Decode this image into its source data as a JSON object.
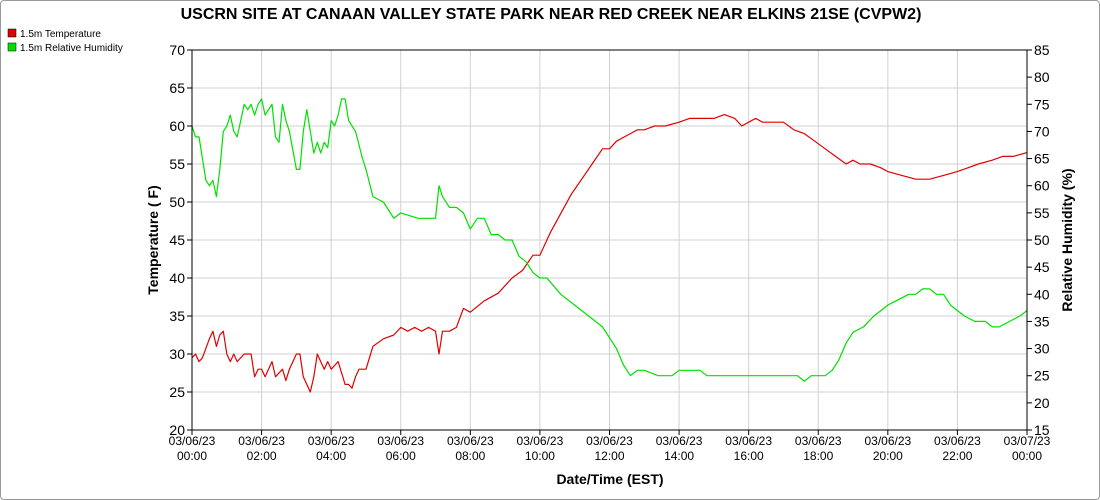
{
  "chart_data": {
    "type": "line",
    "title": "USCRN SITE AT CANAAN VALLEY STATE PARK NEAR RED CREEK NEAR ELKINS 21SE (CVPW2)",
    "xlabel": "Date/Time (EST)",
    "ylabel_left": "Temperature ( F)",
    "ylabel_right": "Relative Humidity (%)",
    "y_left_lim": [
      20,
      70
    ],
    "y_right_lim": [
      15,
      85
    ],
    "y_left_ticks": [
      "20",
      "25",
      "30",
      "35",
      "40",
      "45",
      "50",
      "55",
      "60",
      "65",
      "70"
    ],
    "y_right_ticks": [
      "15",
      "20",
      "25",
      "30",
      "35",
      "40",
      "45",
      "50",
      "55",
      "60",
      "65",
      "70",
      "75",
      "80",
      "85"
    ],
    "x_ticks": [
      {
        "date": "03/06/23",
        "time": "00:00"
      },
      {
        "date": "03/06/23",
        "time": "02:00"
      },
      {
        "date": "03/06/23",
        "time": "04:00"
      },
      {
        "date": "03/06/23",
        "time": "06:00"
      },
      {
        "date": "03/06/23",
        "time": "08:00"
      },
      {
        "date": "03/06/23",
        "time": "10:00"
      },
      {
        "date": "03/06/23",
        "time": "12:00"
      },
      {
        "date": "03/06/23",
        "time": "14:00"
      },
      {
        "date": "03/06/23",
        "time": "16:00"
      },
      {
        "date": "03/06/23",
        "time": "18:00"
      },
      {
        "date": "03/06/23",
        "time": "20:00"
      },
      {
        "date": "03/06/23",
        "time": "22:00"
      },
      {
        "date": "03/07/23",
        "time": "00:00"
      }
    ],
    "x_range_hours": [
      0,
      24
    ],
    "grid": true,
    "legend_position": "top-left",
    "series": [
      {
        "name": "1.5m Temperature",
        "axis": "left",
        "color": "#e00000",
        "x": [
          0,
          0.1,
          0.2,
          0.3,
          0.5,
          0.6,
          0.7,
          0.8,
          0.9,
          1.0,
          1.1,
          1.2,
          1.3,
          1.5,
          1.7,
          1.8,
          1.9,
          2.0,
          2.1,
          2.3,
          2.4,
          2.6,
          2.7,
          2.8,
          3.0,
          3.1,
          3.2,
          3.4,
          3.5,
          3.6,
          3.8,
          3.9,
          4.0,
          4.2,
          4.4,
          4.5,
          4.6,
          4.7,
          4.8,
          5.0,
          5.2,
          5.5,
          5.8,
          6.0,
          6.2,
          6.4,
          6.6,
          6.8,
          7.0,
          7.1,
          7.2,
          7.4,
          7.6,
          7.8,
          8.0,
          8.4,
          8.8,
          9.2,
          9.5,
          9.8,
          10.0,
          10.3,
          10.6,
          10.9,
          11.2,
          11.5,
          11.8,
          12.0,
          12.2,
          12.4,
          12.6,
          12.8,
          13.0,
          13.3,
          13.6,
          14.0,
          14.3,
          14.6,
          15.0,
          15.3,
          15.6,
          15.8,
          16.0,
          16.2,
          16.4,
          16.6,
          16.8,
          17.0,
          17.3,
          17.6,
          17.9,
          18.2,
          18.5,
          18.8,
          19.0,
          19.2,
          19.5,
          19.8,
          20.0,
          20.4,
          20.8,
          21.2,
          21.6,
          22.0,
          22.3,
          22.6,
          23.0,
          23.3,
          23.6,
          24.0
        ],
        "values": [
          29.5,
          30,
          29,
          29.5,
          32,
          33,
          31,
          32.5,
          33,
          30,
          29,
          30,
          29,
          30,
          30,
          27,
          28,
          28,
          27,
          29,
          27,
          28,
          26.5,
          28,
          30,
          30,
          27,
          25,
          27,
          30,
          28,
          29,
          28,
          29,
          26,
          26,
          25.5,
          27,
          28,
          28,
          31,
          32,
          32.5,
          33.5,
          33,
          33.5,
          33,
          33.5,
          33,
          30,
          33,
          33,
          33.5,
          36,
          35.5,
          37,
          38,
          40,
          41,
          43,
          43,
          46,
          48.5,
          51,
          53,
          55,
          57,
          57,
          58,
          58.5,
          59,
          59.5,
          59.5,
          60,
          60,
          60.5,
          61,
          61,
          61,
          61.5,
          61,
          60,
          60.5,
          61,
          60.5,
          60.5,
          60.5,
          60.5,
          59.5,
          59,
          58,
          57,
          56,
          55,
          55.5,
          55,
          55,
          54.5,
          54,
          53.5,
          53,
          53,
          53.5,
          54,
          54.5,
          55,
          55.5,
          56,
          56,
          56.5
        ]
      },
      {
        "name": "1.5m Relative Humidity",
        "axis": "right",
        "color": "#00e000",
        "x": [
          0,
          0.1,
          0.2,
          0.4,
          0.5,
          0.6,
          0.7,
          0.8,
          0.9,
          1.0,
          1.1,
          1.2,
          1.3,
          1.5,
          1.6,
          1.7,
          1.8,
          1.9,
          2.0,
          2.1,
          2.3,
          2.4,
          2.5,
          2.6,
          2.7,
          2.8,
          3.0,
          3.1,
          3.2,
          3.3,
          3.5,
          3.6,
          3.7,
          3.8,
          3.9,
          4.0,
          4.1,
          4.2,
          4.3,
          4.4,
          4.5,
          4.7,
          4.9,
          5.0,
          5.2,
          5.5,
          5.8,
          6.0,
          6.5,
          7.0,
          7.1,
          7.2,
          7.4,
          7.6,
          7.8,
          8.0,
          8.2,
          8.4,
          8.6,
          8.8,
          9.0,
          9.2,
          9.4,
          9.6,
          9.8,
          10.0,
          10.2,
          10.6,
          11.0,
          11.4,
          11.8,
          12.2,
          12.4,
          12.6,
          12.8,
          13.0,
          13.4,
          13.8,
          14.0,
          14.2,
          14.4,
          14.6,
          14.8,
          15.0,
          15.4,
          15.8,
          16.0,
          16.4,
          16.8,
          17.0,
          17.2,
          17.4,
          17.6,
          17.8,
          18.0,
          18.2,
          18.4,
          18.6,
          18.8,
          19.0,
          19.3,
          19.6,
          19.8,
          20.0,
          20.3,
          20.6,
          20.8,
          21.0,
          21.2,
          21.4,
          21.6,
          21.8,
          22.0,
          22.2,
          22.5,
          22.8,
          23.0,
          23.2,
          23.5,
          23.8,
          24.0
        ],
        "values": [
          71,
          69,
          69,
          61,
          60,
          61,
          58,
          63,
          70,
          71,
          73,
          70,
          69,
          75,
          74,
          75,
          73,
          75,
          76,
          73,
          75,
          69,
          68,
          75,
          72,
          70,
          63,
          63,
          70,
          74,
          66,
          68,
          66,
          68,
          67,
          72,
          71,
          73,
          76,
          76,
          72,
          70,
          65,
          63,
          58,
          57,
          54,
          55,
          54,
          54,
          60,
          58,
          56,
          56,
          55,
          52,
          54,
          54,
          51,
          51,
          50,
          50,
          47,
          46,
          44,
          43,
          43,
          40,
          38,
          36,
          34,
          30,
          27,
          25,
          26,
          26,
          25,
          25,
          26,
          26,
          26,
          26,
          25,
          25,
          25,
          25,
          25,
          25,
          25,
          25,
          25,
          25,
          24,
          25,
          25,
          25,
          26,
          28,
          31,
          33,
          34,
          36,
          37,
          38,
          39,
          40,
          40,
          41,
          41,
          40,
          40,
          38,
          37,
          36,
          35,
          35,
          34,
          34,
          35,
          36,
          37
        ]
      }
    ]
  }
}
